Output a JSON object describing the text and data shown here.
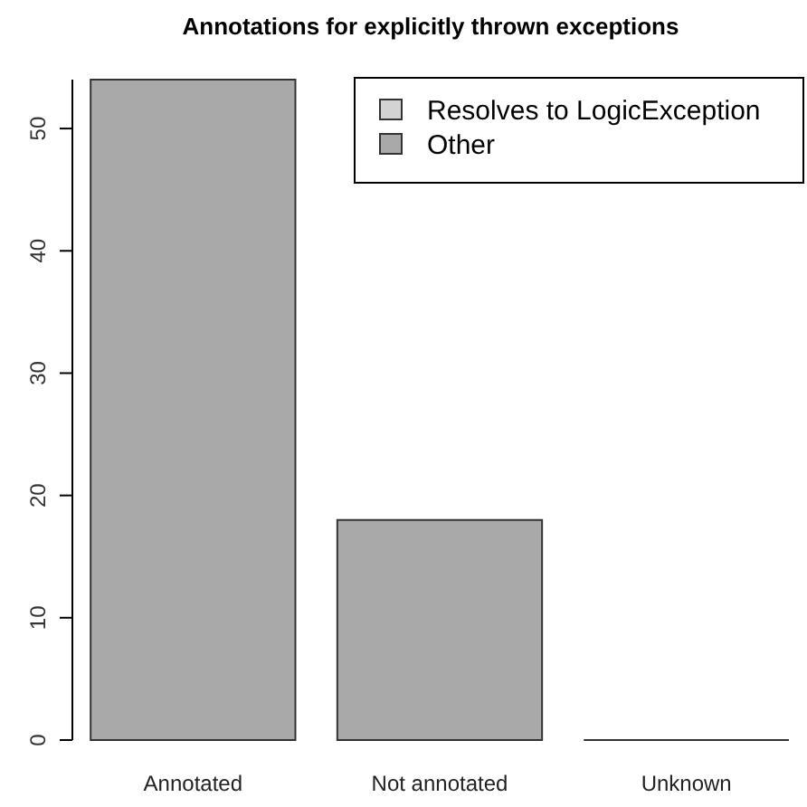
{
  "chart_data": {
    "type": "bar",
    "title": "Annotations for explicitly thrown exceptions",
    "categories": [
      "Annotated",
      "Not annotated",
      "Unknown"
    ],
    "stacked": true,
    "series": [
      {
        "name": "Resolves to LogicException",
        "color": "#d3d3d3",
        "values": [
          0,
          0,
          0
        ]
      },
      {
        "name": "Other",
        "color": "#a9a9a9",
        "values": [
          54,
          18,
          0
        ]
      }
    ],
    "ylim": [
      0,
      54
    ],
    "yticks": [
      0,
      10,
      20,
      30,
      40,
      50
    ],
    "legend": "top right",
    "grid": false
  }
}
